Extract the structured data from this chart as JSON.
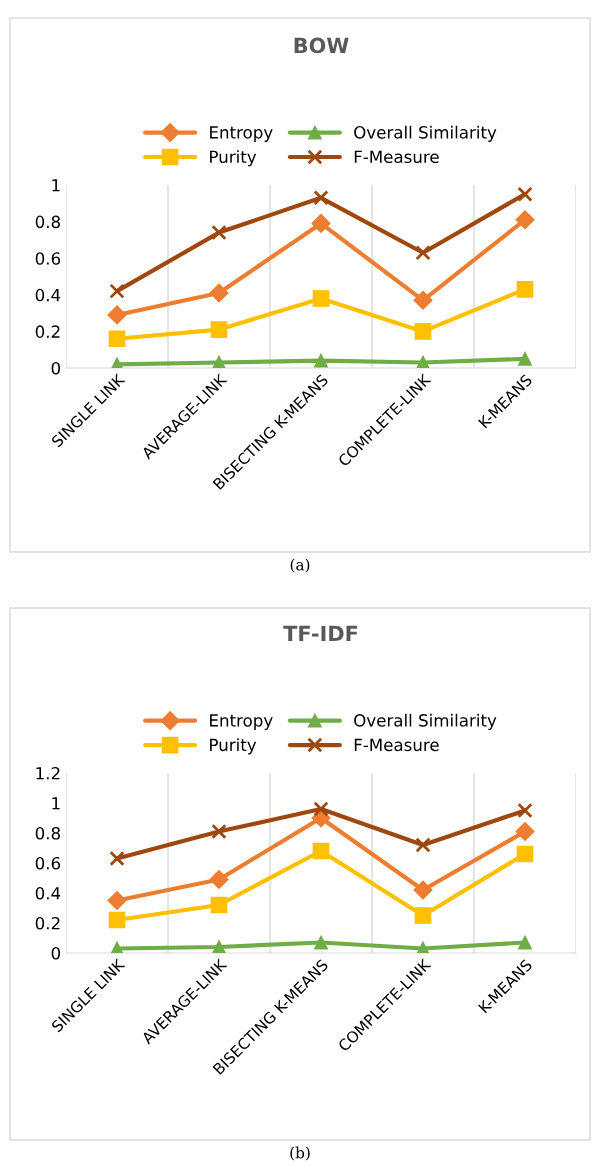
{
  "chart_data": [
    {
      "type": "line",
      "title": "BOW",
      "categories": [
        "SINGLE LINK",
        "AVERAGE-LINK",
        "BISECTING K-MEANS",
        "COMPLETE-LINK",
        "K-MEANS"
      ],
      "series": [
        {
          "name": "Entropy",
          "color": "#ed7d31",
          "marker": "diamond",
          "values": [
            0.29,
            0.41,
            0.79,
            0.37,
            0.81
          ]
        },
        {
          "name": "Purity",
          "color": "#ffc000",
          "marker": "square",
          "values": [
            0.16,
            0.21,
            0.38,
            0.2,
            0.43
          ]
        },
        {
          "name": "Overall Similarity",
          "color": "#70ad47",
          "marker": "triangle",
          "values": [
            0.02,
            0.03,
            0.04,
            0.03,
            0.05
          ]
        },
        {
          "name": "F-Measure",
          "color": "#9e480e",
          "marker": "cross",
          "values": [
            0.42,
            0.74,
            0.93,
            0.63,
            0.95
          ]
        }
      ],
      "ylim": [
        0,
        1
      ],
      "yticks": [
        0,
        0.2,
        0.4,
        0.6,
        0.8,
        1
      ],
      "grid": "x",
      "legend": "top",
      "annotations": [
        "(a)"
      ]
    },
    {
      "type": "line",
      "title": "TF-IDF",
      "categories": [
        "SINGLE LINK",
        "AVERAGE-LINK",
        "BISECTING K-MEANS",
        "COMPLETE-LINK",
        "K-MEANS"
      ],
      "series": [
        {
          "name": "Entropy",
          "color": "#ed7d31",
          "marker": "diamond",
          "values": [
            0.35,
            0.49,
            0.9,
            0.42,
            0.81
          ]
        },
        {
          "name": "Purity",
          "color": "#ffc000",
          "marker": "square",
          "values": [
            0.22,
            0.32,
            0.68,
            0.25,
            0.66
          ]
        },
        {
          "name": "Overall Similarity",
          "color": "#70ad47",
          "marker": "triangle",
          "values": [
            0.03,
            0.04,
            0.07,
            0.03,
            0.07
          ]
        },
        {
          "name": "F-Measure",
          "color": "#9e480e",
          "marker": "cross",
          "values": [
            0.63,
            0.81,
            0.96,
            0.72,
            0.95
          ]
        }
      ],
      "ylim": [
        0,
        1.2
      ],
      "yticks": [
        0,
        0.2,
        0.4,
        0.6,
        0.8,
        1,
        1.2
      ],
      "grid": "x",
      "legend": "top",
      "annotations": [
        "(b)"
      ]
    }
  ]
}
